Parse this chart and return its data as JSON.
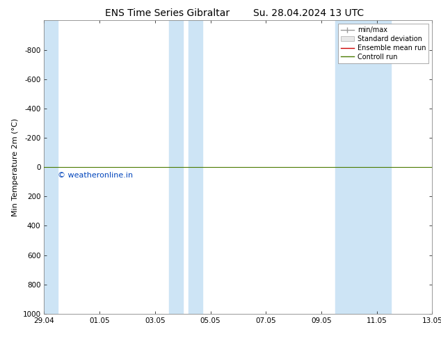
{
  "title_left": "ENS Time Series Gibraltar",
  "title_right": "Su. 28.04.2024 13 UTC",
  "ylabel": "Min Temperature 2m (°C)",
  "ylim_top": -1000,
  "ylim_bottom": 1000,
  "yticks": [
    -800,
    -600,
    -400,
    -200,
    0,
    200,
    400,
    600,
    800,
    1000
  ],
  "xtick_labels": [
    "29.04",
    "01.05",
    "03.05",
    "05.05",
    "07.05",
    "09.05",
    "11.05",
    "13.05"
  ],
  "xtick_positions": [
    0,
    2,
    4,
    6,
    8,
    10,
    12,
    14
  ],
  "xlim": [
    0,
    14
  ],
  "shaded_bands": [
    [
      0.0,
      0.5
    ],
    [
      4.5,
      5.0
    ],
    [
      5.2,
      5.7
    ],
    [
      10.5,
      12.5
    ]
  ],
  "shaded_color": "#cde4f5",
  "control_run_color": "#4a7a00",
  "ensemble_mean_color": "#cc0000",
  "minmax_color": "#999999",
  "stddev_color": "#cccccc",
  "watermark_text": "© weatheronline.in",
  "watermark_color": "#0044bb",
  "background_color": "#ffffff",
  "plot_bg_color": "#ffffff",
  "title_fontsize": 10,
  "axis_fontsize": 7.5,
  "ylabel_fontsize": 8,
  "legend_fontsize": 7,
  "watermark_fontsize": 8
}
